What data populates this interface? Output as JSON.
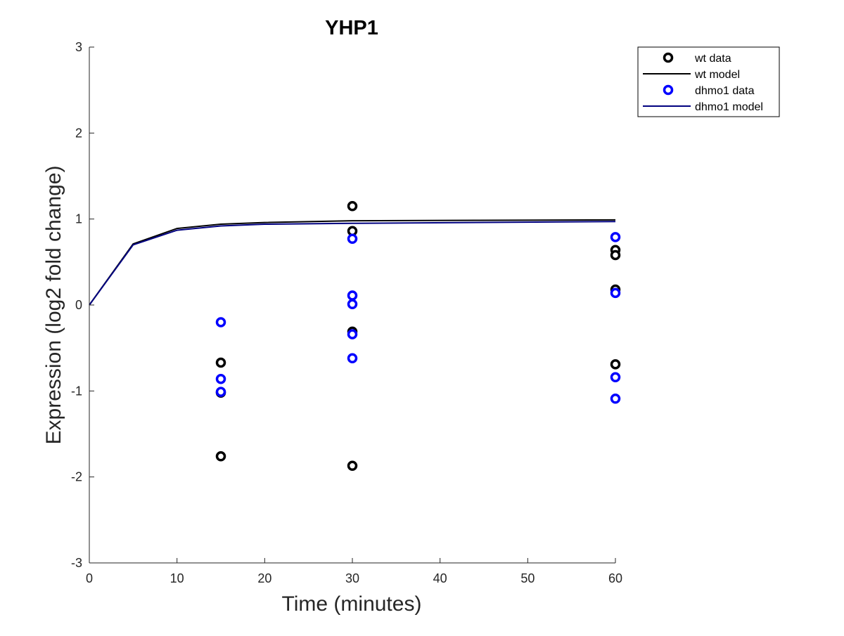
{
  "chart_data": {
    "type": "scatter",
    "title": "YHP1",
    "xlabel": "Time (minutes)",
    "ylabel": "Expression (log2 fold change)",
    "xlim": [
      0,
      60
    ],
    "ylim": [
      -3,
      3
    ],
    "xticks": [
      0,
      10,
      20,
      30,
      40,
      50,
      60
    ],
    "yticks": [
      -3,
      -2,
      -1,
      0,
      1,
      2,
      3
    ],
    "grid": false,
    "legend_position": "top-right, outside plot",
    "series": [
      {
        "name": "wt data",
        "kind": "markers",
        "marker": "circle",
        "color": "#000000",
        "points": [
          [
            15,
            -0.67
          ],
          [
            15,
            -1.02
          ],
          [
            15,
            -1.76
          ],
          [
            30,
            1.15
          ],
          [
            30,
            0.86
          ],
          [
            30,
            -0.31
          ],
          [
            30,
            -1.87
          ],
          [
            60,
            0.64
          ],
          [
            60,
            0.58
          ],
          [
            60,
            0.18
          ],
          [
            60,
            -0.69
          ]
        ]
      },
      {
        "name": "wt model",
        "kind": "line",
        "color": "#000000",
        "points": [
          [
            0,
            0
          ],
          [
            5,
            0.71
          ],
          [
            10,
            0.89
          ],
          [
            15,
            0.94
          ],
          [
            20,
            0.96
          ],
          [
            30,
            0.98
          ],
          [
            60,
            0.99
          ]
        ]
      },
      {
        "name": "dhmo1 data",
        "kind": "markers",
        "marker": "circle",
        "color": "#0000ff",
        "points": [
          [
            15,
            -0.2
          ],
          [
            15,
            -0.86
          ],
          [
            15,
            -1.01
          ],
          [
            30,
            0.77
          ],
          [
            30,
            0.11
          ],
          [
            30,
            0.01
          ],
          [
            30,
            -0.34
          ],
          [
            30,
            -0.62
          ],
          [
            60,
            0.79
          ],
          [
            60,
            0.14
          ],
          [
            60,
            -0.84
          ],
          [
            60,
            -1.09
          ]
        ]
      },
      {
        "name": "dhmo1 model",
        "kind": "line",
        "color": "#000080",
        "points": [
          [
            0,
            0
          ],
          [
            5,
            0.7
          ],
          [
            10,
            0.87
          ],
          [
            15,
            0.92
          ],
          [
            20,
            0.94
          ],
          [
            30,
            0.95
          ],
          [
            60,
            0.97
          ]
        ]
      }
    ]
  }
}
